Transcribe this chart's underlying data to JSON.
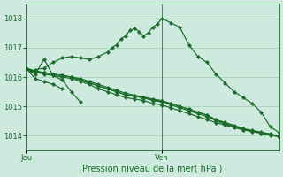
{
  "background_color": "#ceeade",
  "grid_color": "#9ecfb5",
  "line_color": "#1a6b2a",
  "title": "Pression niveau de la mer( hPa )",
  "xlabel_jeu": "Jeu",
  "xlabel_ven": "Ven",
  "ylim": [
    1013.5,
    1018.5
  ],
  "yticks": [
    1014,
    1015,
    1016,
    1017,
    1018
  ],
  "xlim": [
    0,
    28
  ],
  "ven_x": 15,
  "series": [
    {
      "x": [
        0,
        1,
        2,
        3,
        4,
        5,
        6,
        7,
        8,
        9,
        10,
        11,
        12,
        13,
        14,
        15,
        16,
        17,
        18,
        19,
        20,
        21,
        22,
        23,
        24,
        25,
        26,
        27,
        28
      ],
      "y": [
        1016.3,
        1016.2,
        1016.15,
        1016.1,
        1016.05,
        1016.0,
        1015.9,
        1015.8,
        1015.7,
        1015.6,
        1015.5,
        1015.4,
        1015.35,
        1015.3,
        1015.2,
        1015.15,
        1015.1,
        1015.0,
        1014.9,
        1014.8,
        1014.7,
        1014.5,
        1014.4,
        1014.3,
        1014.2,
        1014.15,
        1014.1,
        1014.05,
        1014.0
      ]
    },
    {
      "x": [
        0,
        1,
        2,
        3,
        4,
        5,
        6,
        7,
        8,
        9,
        10,
        11,
        12,
        13,
        14,
        15,
        16,
        17,
        18,
        19,
        20,
        21,
        22,
        23,
        24,
        25,
        26,
        27,
        28
      ],
      "y": [
        1016.3,
        1016.2,
        1016.15,
        1016.1,
        1016.05,
        1016.0,
        1015.95,
        1015.85,
        1015.75,
        1015.65,
        1015.55,
        1015.45,
        1015.38,
        1015.32,
        1015.25,
        1015.2,
        1015.1,
        1015.0,
        1014.9,
        1014.8,
        1014.7,
        1014.55,
        1014.45,
        1014.35,
        1014.25,
        1014.18,
        1014.12,
        1014.06,
        1013.97
      ]
    },
    {
      "x": [
        0,
        1,
        2,
        3,
        4,
        5,
        6,
        7,
        8,
        9,
        10,
        11,
        12,
        13,
        14,
        15,
        16,
        17,
        18,
        19,
        20,
        21,
        22,
        23,
        24,
        25,
        26,
        27,
        28
      ],
      "y": [
        1016.3,
        1016.2,
        1016.15,
        1016.1,
        1016.05,
        1016.0,
        1015.9,
        1015.8,
        1015.7,
        1015.6,
        1015.5,
        1015.4,
        1015.35,
        1015.28,
        1015.22,
        1015.18,
        1015.05,
        1014.95,
        1014.85,
        1014.75,
        1014.65,
        1014.52,
        1014.42,
        1014.32,
        1014.22,
        1014.16,
        1014.1,
        1014.04,
        1013.95
      ]
    },
    {
      "x": [
        0,
        1,
        2,
        3,
        4,
        5,
        6,
        7,
        8,
        9,
        10,
        11,
        12,
        13,
        14,
        15,
        16,
        17,
        18,
        19,
        20,
        21,
        22,
        23,
        24,
        25,
        26,
        27,
        28
      ],
      "y": [
        1016.3,
        1016.18,
        1016.1,
        1016.05,
        1016.0,
        1015.95,
        1015.85,
        1015.75,
        1015.6,
        1015.5,
        1015.4,
        1015.3,
        1015.25,
        1015.2,
        1015.1,
        1015.05,
        1014.95,
        1014.85,
        1014.75,
        1014.65,
        1014.55,
        1014.44,
        1014.36,
        1014.28,
        1014.2,
        1014.14,
        1014.08,
        1014.02,
        1013.96
      ]
    },
    {
      "x": [
        0,
        0.5,
        1,
        2,
        3,
        4,
        5,
        6,
        7,
        8,
        9,
        9.5,
        10,
        10.5,
        11,
        11.5,
        12,
        12.5,
        13,
        13.5,
        14,
        14.5,
        15,
        16,
        17,
        18,
        19,
        20,
        21,
        22,
        23,
        24,
        25,
        26,
        27,
        28
      ],
      "y": [
        1016.3,
        1016.2,
        1016.25,
        1016.3,
        1016.5,
        1016.65,
        1016.7,
        1016.65,
        1016.6,
        1016.7,
        1016.85,
        1017.0,
        1017.1,
        1017.3,
        1017.4,
        1017.6,
        1017.65,
        1017.55,
        1017.4,
        1017.5,
        1017.7,
        1017.8,
        1018.0,
        1017.85,
        1017.7,
        1017.1,
        1016.7,
        1016.5,
        1016.1,
        1015.8,
        1015.5,
        1015.3,
        1015.1,
        1014.8,
        1014.3,
        1014.1
      ]
    },
    {
      "x": [
        0,
        1,
        2,
        3,
        4,
        5,
        6
      ],
      "y": [
        1016.3,
        1016.1,
        1016.6,
        1016.05,
        1015.9,
        1015.5,
        1015.15
      ]
    },
    {
      "x": [
        0,
        1,
        2,
        3,
        4
      ],
      "y": [
        1016.3,
        1015.95,
        1015.85,
        1015.75,
        1015.6
      ]
    }
  ]
}
